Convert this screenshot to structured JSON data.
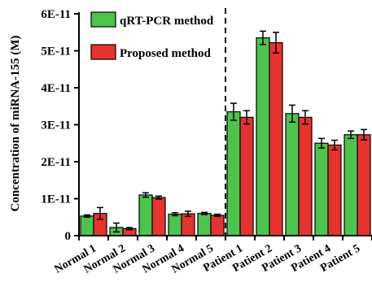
{
  "chart_data": {
    "type": "bar",
    "title": "",
    "xlabel": "",
    "ylabel": "Concentration of miRNA-155 (M)",
    "ylim": [
      0,
      6e-11
    ],
    "yticks": [
      0,
      1e-11,
      2e-11,
      3e-11,
      4e-11,
      5e-11,
      6e-11
    ],
    "ytick_labels": [
      "0",
      "1E-11",
      "2E-11",
      "3E-11",
      "4E-11",
      "5E-11",
      "6E-11"
    ],
    "categories": [
      "Normal 1",
      "Normal 2",
      "Normal 3",
      "Normal 4",
      "Normal 5",
      "Patient 1",
      "Patient 2",
      "Patient 3",
      "Patient 4",
      "Patient 5"
    ],
    "series": [
      {
        "name": "qRT-PCR method",
        "color": "#4cc44c",
        "values": [
          5.3e-12,
          2.2e-12,
          1.1e-11,
          5.8e-12,
          6e-12,
          3.35e-11,
          5.35e-11,
          3.3e-11,
          2.5e-11,
          2.73e-11
        ],
        "errors": [
          3e-13,
          1.2e-12,
          6e-13,
          4e-13,
          3e-13,
          2.3e-12,
          1.8e-12,
          2.3e-12,
          1.3e-12,
          1e-12
        ]
      },
      {
        "name": "Proposed method",
        "color": "#e8322e",
        "values": [
          6e-12,
          1.9e-12,
          1.03e-11,
          5.9e-12,
          5.5e-12,
          3.2e-11,
          5.22e-11,
          3.2e-11,
          2.45e-11,
          2.73e-11
        ],
        "errors": [
          1.6e-12,
          3e-13,
          4e-13,
          7e-13,
          3e-13,
          1.8e-12,
          2.8e-12,
          1.8e-12,
          1.3e-12,
          1.4e-12
        ]
      }
    ],
    "separator_after_index": 4,
    "legend_position": "top-left",
    "grid": false
  }
}
